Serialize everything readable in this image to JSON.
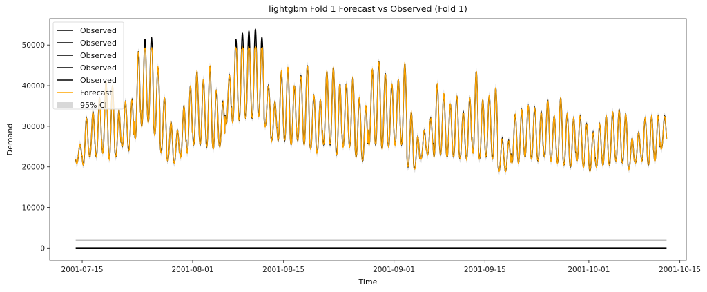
{
  "chart_data": {
    "type": "line",
    "title": "lightgbm Fold 1 Forecast vs Observed (Fold 1)",
    "xlabel": "Time",
    "ylabel": "Demand",
    "x_start": "2001-07-14",
    "x_end": "2001-10-12",
    "xlim": [
      "2001-07-10",
      "2001-10-16"
    ],
    "ylim": [
      -3000,
      56500
    ],
    "x_ticks": [
      "2001-07-15",
      "2001-08-01",
      "2001-08-15",
      "2001-09-01",
      "2001-09-15",
      "2001-10-01",
      "2001-10-15"
    ],
    "y_ticks": [
      0,
      10000,
      20000,
      30000,
      40000,
      50000
    ],
    "y_tick_labels": [
      "0",
      "10000",
      "20000",
      "30000",
      "40000",
      "50000"
    ],
    "daily_peaks": [
      25500,
      32000,
      33500,
      37000,
      41000,
      40000,
      34000,
      36000,
      36500,
      48500,
      51500,
      52000,
      44500,
      37000,
      31000,
      29000,
      35000,
      40000,
      43500,
      41500,
      44800,
      39000,
      36000,
      42500,
      51500,
      53000,
      53500,
      54000,
      52000,
      40000,
      36000,
      43500,
      44500,
      40000,
      42500,
      45000,
      37500,
      36500,
      43500,
      44500,
      40500,
      40500,
      42000,
      37000,
      35000,
      44000,
      46000,
      43000,
      40500,
      41500,
      45500,
      33500,
      27500,
      29000,
      32000,
      40500,
      38000,
      35500,
      37500,
      33500,
      37000,
      43500,
      36500,
      37500,
      39500,
      27000,
      26500,
      33000,
      34000,
      35000,
      34500,
      33500,
      36500,
      32500,
      37000,
      33000,
      32000,
      32500,
      30500,
      28500,
      30500,
      32500,
      33500,
      34000,
      33000,
      27000,
      28500,
      32000,
      32500,
      32500,
      32500
    ],
    "daily_troughs": [
      21000,
      20500,
      22500,
      22500,
      23500,
      22000,
      22500,
      25000,
      24000,
      27000,
      30000,
      31000,
      28000,
      23500,
      21500,
      21000,
      22500,
      23500,
      25500,
      25500,
      25000,
      24500,
      25000,
      30500,
      31000,
      31500,
      32000,
      32000,
      32500,
      30000,
      26500,
      26500,
      26500,
      25500,
      26500,
      25500,
      24500,
      23500,
      25500,
      25500,
      23000,
      25000,
      25000,
      22500,
      21500,
      25500,
      25500,
      24500,
      25000,
      25500,
      25500,
      20000,
      19500,
      22000,
      23000,
      22500,
      23000,
      22500,
      22500,
      22000,
      22000,
      23500,
      22000,
      22500,
      22000,
      19000,
      19000,
      21000,
      21000,
      22500,
      22000,
      21500,
      22500,
      21500,
      21000,
      20500,
      20000,
      21500,
      20000,
      19000,
      20000,
      20500,
      20500,
      21500,
      21000,
      19500,
      21000,
      21500,
      20500,
      21500,
      24500
    ],
    "forecast_cap": 49000,
    "flat_lines": [
      {
        "name": "Observed",
        "value": 2000
      },
      {
        "name": "Observed",
        "value": 0
      }
    ],
    "series": [
      {
        "name": "Observed",
        "color": "#000000"
      },
      {
        "name": "Observed",
        "color": "#000000"
      },
      {
        "name": "Observed",
        "color": "#000000"
      },
      {
        "name": "Observed",
        "color": "#000000"
      },
      {
        "name": "Observed",
        "color": "#000000"
      },
      {
        "name": "Forecast",
        "color": "#ffa500"
      },
      {
        "name": "95% CI",
        "color": "#c8c8c8"
      }
    ],
    "legend": {
      "location": "top-left",
      "entries": [
        "Observed",
        "Observed",
        "Observed",
        "Observed",
        "Observed",
        "Forecast",
        "95% CI"
      ]
    },
    "grid": false
  }
}
